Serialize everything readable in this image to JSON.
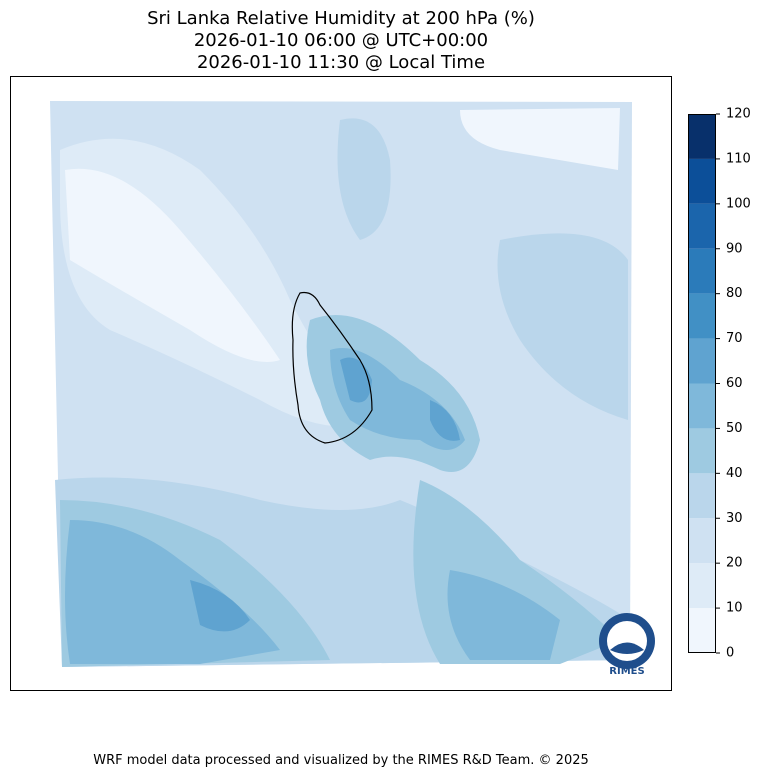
{
  "header": {
    "title_lines": [
      "Sri Lanka Relative Humidity at 200 hPa (%)",
      "2026-01-10 06:00 @ UTC+00:00",
      "2026-01-10 11:30 @ Local Time"
    ]
  },
  "colorbar": {
    "ticks": [
      0,
      10,
      20,
      30,
      40,
      50,
      60,
      70,
      80,
      90,
      100,
      110,
      120
    ],
    "colors": [
      "#f0f6fd",
      "#deebf7",
      "#cfe1f2",
      "#bad6eb",
      "#9ecae1",
      "#7fb8da",
      "#5fa3d0",
      "#4190c5",
      "#2b7bba",
      "#1b65ac",
      "#0c4f99",
      "#08306b"
    ]
  },
  "logo": {
    "text": "RIMES"
  },
  "footer": {
    "text": "WRF model data processed and visualized by the RIMES R&D Team. © 2025"
  }
}
